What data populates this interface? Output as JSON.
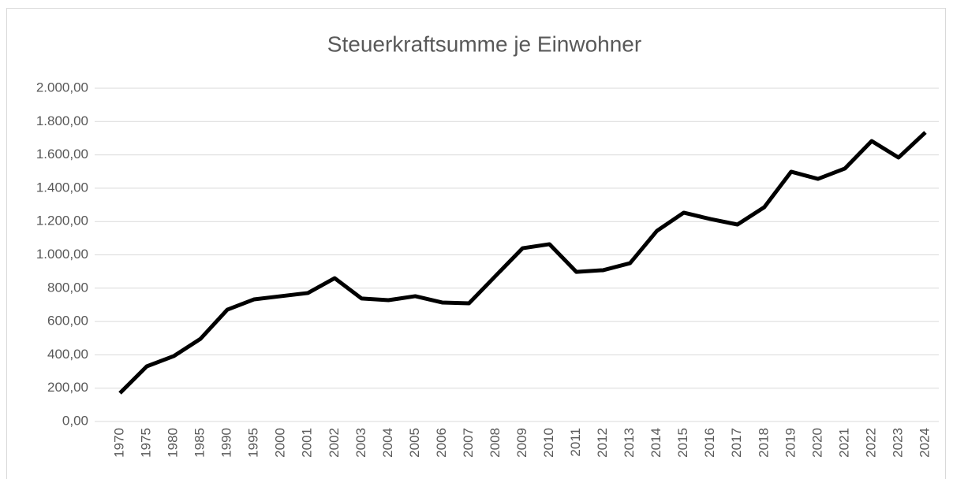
{
  "chart_data": {
    "type": "line",
    "title": "Steuerkraftsumme je Einwohner",
    "categories": [
      "1970",
      "1975",
      "1980",
      "1985",
      "1990",
      "1995",
      "2000",
      "2001",
      "2002",
      "2003",
      "2004",
      "2005",
      "2006",
      "2007",
      "2008",
      "2009",
      "2010",
      "2011",
      "2012",
      "2013",
      "2014",
      "2015",
      "2016",
      "2017",
      "2018",
      "2019",
      "2020",
      "2021",
      "2022",
      "2023",
      "2024"
    ],
    "series": [
      {
        "name": "Steuerkraftsumme je Einwohner",
        "color": "#000000",
        "values": [
          170,
          331,
          392,
          496,
          671,
          733,
          752,
          771,
          860,
          738,
          728,
          752,
          714,
          709,
          875,
          1040,
          1064,
          898,
          908,
          950,
          1144,
          1253,
          1215,
          1182,
          1286,
          1499,
          1456,
          1518,
          1683,
          1584,
          1735
        ]
      }
    ],
    "ylim": [
      0,
      2000
    ],
    "yticks": [
      {
        "value": 0,
        "label": "0,00"
      },
      {
        "value": 200,
        "label": "200,00"
      },
      {
        "value": 400,
        "label": "400,00"
      },
      {
        "value": 600,
        "label": "600,00"
      },
      {
        "value": 800,
        "label": "800,00"
      },
      {
        "value": 1000,
        "label": "1.000,00"
      },
      {
        "value": 1200,
        "label": "1.200,00"
      },
      {
        "value": 1400,
        "label": "1.400,00"
      },
      {
        "value": 1600,
        "label": "1.600,00"
      },
      {
        "value": 1800,
        "label": "1.800,00"
      },
      {
        "value": 2000,
        "label": "2.000,00"
      }
    ],
    "grid": true
  }
}
